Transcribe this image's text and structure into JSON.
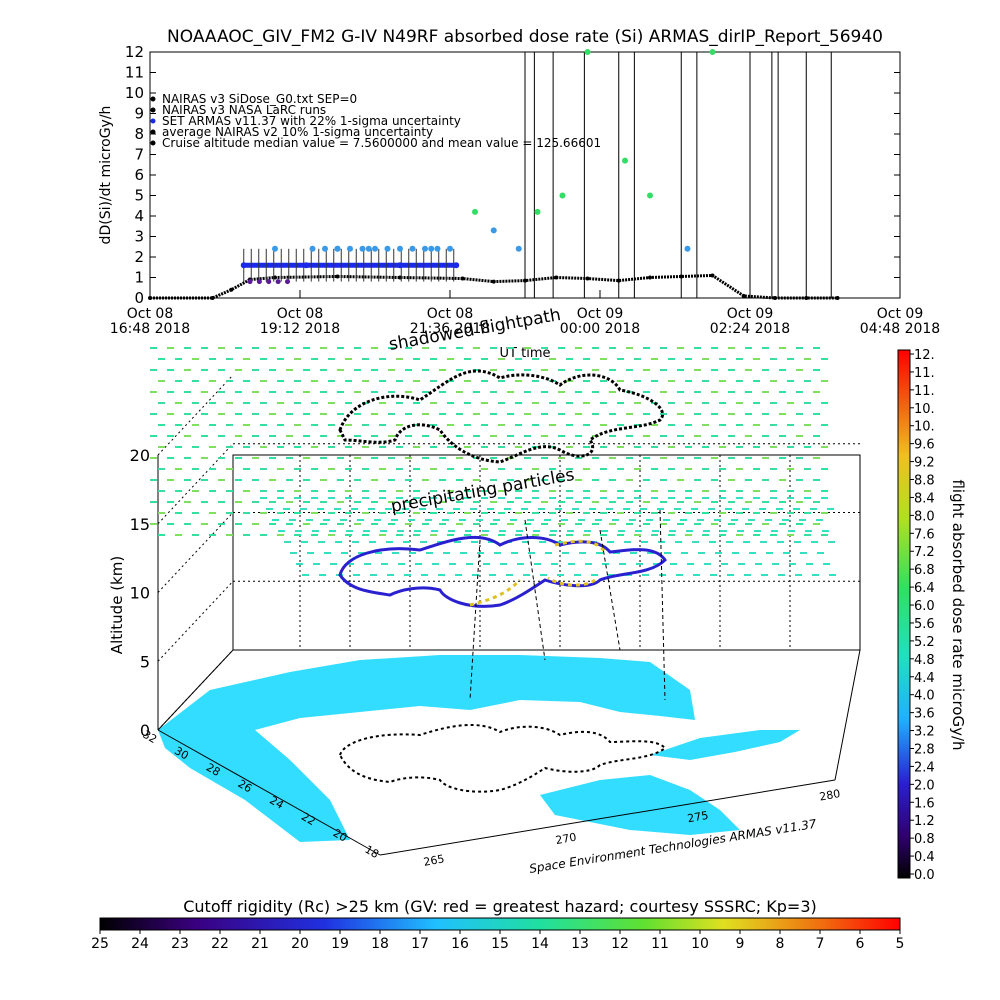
{
  "title": "NOAAAOC_GIV_FM2 G-IV   N49RF  absorbed dose rate (Si) ARMAS_dirIP_Report_56940",
  "top_chart": {
    "ylabel": "dD(Si)/dt microGy/h",
    "xlabel": "UT time",
    "y_ticks": [
      "0",
      "1",
      "2",
      "3",
      "4",
      "5",
      "6",
      "7",
      "8",
      "9",
      "10",
      "11",
      "12"
    ],
    "x_ticks": [
      {
        "l1": "Oct 08",
        "l2": "16:48 2018"
      },
      {
        "l1": "Oct 08",
        "l2": "19:12 2018"
      },
      {
        "l1": "Oct 08",
        "l2": "21:36 2018"
      },
      {
        "l1": "Oct 09",
        "l2": "00:00 2018"
      },
      {
        "l1": "Oct 09",
        "l2": "02:24 2018"
      },
      {
        "l1": "Oct 09",
        "l2": "04:48 2018"
      }
    ],
    "legend": [
      "NAIRAS v3 SiDose_G0.txt SEP=0",
      "NAIRAS v3 NASA LaRC runs",
      "SET ARMAS v11.37 with 22% 1-sigma uncertainty",
      "average NAIRAS v2 10% 1-sigma uncertainty",
      "Cruise altitude median value = 7.5600000 and mean value = 125.66601"
    ]
  },
  "chart_data": [
    {
      "type": "scatter",
      "title": "NOAAAOC_GIV_FM2 G-IV   N49RF  absorbed dose rate (Si) ARMAS_dirIP_Report_56940",
      "xlabel": "UT time",
      "ylabel": "dD(Si)/dt microGy/h",
      "x_unit": "hours after Oct 08 16:48 2018",
      "xlim": [
        0,
        12
      ],
      "ylim": [
        0,
        12
      ],
      "grid": false,
      "legend_position": "top-left",
      "series": [
        {
          "name": "NAIRAS v3 SiDose_G0.txt SEP=0",
          "x": [
            0,
            1.0,
            1.3,
            1.6,
            2.0,
            3.0,
            4.0,
            5.0,
            5.5,
            6.0,
            6.5,
            7.0,
            7.5,
            8.0,
            8.5,
            9.0,
            9.5,
            10.0,
            10.5,
            11.0
          ],
          "y": [
            0,
            0,
            0.4,
            0.9,
            1.0,
            1.05,
            1.0,
            0.95,
            0.8,
            0.85,
            1.0,
            0.95,
            0.85,
            1.0,
            1.05,
            1.1,
            0.1,
            0,
            0,
            0
          ]
        },
        {
          "name": "SET ARMAS v11.37 with 22% 1-sigma uncertainty",
          "x": [
            1.5,
            2.0,
            2.5,
            3.0,
            3.5,
            4.0,
            4.5,
            4.9,
            5.2,
            5.5,
            5.9,
            6.2,
            6.6,
            7.0,
            7.6,
            8.0,
            8.6,
            9.0
          ],
          "y": [
            1.6,
            2.4,
            1.6,
            2.4,
            2.4,
            1.6,
            2.4,
            1.6,
            4.2,
            3.3,
            2.4,
            4.2,
            5.0,
            12.0,
            6.7,
            5.0,
            2.4,
            12.0
          ]
        }
      ]
    },
    {
      "type": "heatmap",
      "title": "flight absorbed dose rate microGy/h",
      "ylabel": "Altitude (km)",
      "z_ticks": [
        "0",
        "5",
        "10",
        "15",
        "20"
      ],
      "lat_ticks": [
        "18",
        "20",
        "22",
        "24",
        "26",
        "28",
        "30",
        "32"
      ],
      "lon_ticks": [
        "265",
        "270",
        "275",
        "280"
      ],
      "labels": [
        "shadowed flightpath",
        "precipitating particles"
      ],
      "credit": "Space Environment Technologies ARMAS v11.37"
    }
  ],
  "colorbar_right": {
    "label": "flight absorbed dose rate microGy/h",
    "ticks": [
      "12.",
      "11.",
      "11.",
      "10.",
      "10.",
      "9.6",
      "9.2",
      "8.8",
      "8.4",
      "8.0",
      "7.6",
      "7.2",
      "6.8",
      "6.4",
      "6.0",
      "5.6",
      "5.2",
      "4.8",
      "4.4",
      "4.0",
      "3.6",
      "3.2",
      "2.8",
      "2.4",
      "2.0",
      "1.6",
      "1.2",
      "0.8",
      "0.4",
      "0.0"
    ]
  },
  "colorbar_bottom": {
    "label": "Cutoff rigidity (Rc) >25 km (GV: red = greatest hazard; courtesy SSSRC; Kp=3)",
    "ticks": [
      "25",
      "24",
      "23",
      "22",
      "21",
      "20",
      "19",
      "18",
      "17",
      "16",
      "15",
      "14",
      "13",
      "12",
      "11",
      "10",
      "9",
      "8",
      "7",
      "6",
      "5"
    ]
  },
  "colors": {
    "nairas": "#000000",
    "armas_low": "#5a1a9a",
    "armas_mid": "#1a2ae8",
    "armas_high": "#3a9ae8",
    "green_dot": "#33dd66",
    "land": "#33ddff",
    "colormap": [
      "#000000",
      "#300070",
      "#4a0090",
      "#2a20d0",
      "#1a60f0",
      "#20b0ff",
      "#20e0e0",
      "#20e090",
      "#40e040",
      "#b0e020",
      "#f0e020",
      "#f0a010",
      "#f05010",
      "#ff0000"
    ]
  }
}
